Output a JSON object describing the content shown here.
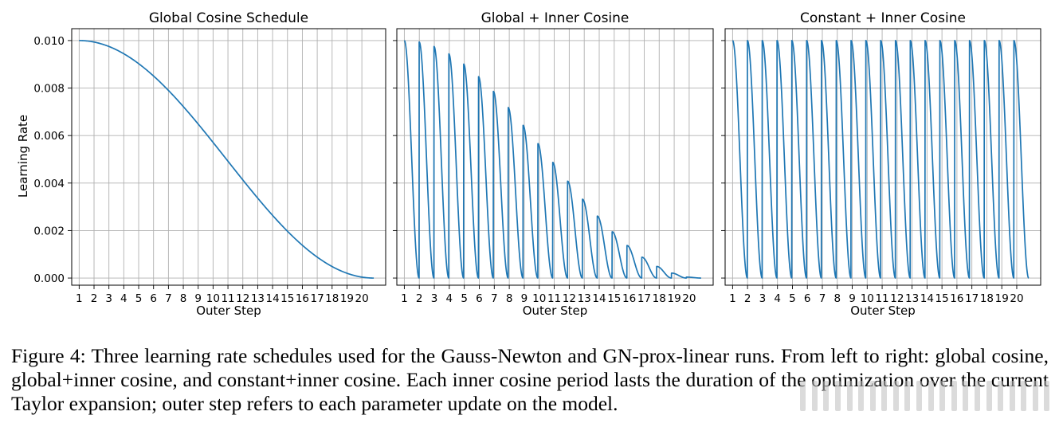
{
  "figure": {
    "ylabel": "Learning Rate",
    "ytick_labels": [
      "0.000",
      "0.002",
      "0.004",
      "0.006",
      "0.008",
      "0.010"
    ],
    "xtick_labels": [
      "1",
      "2",
      "3",
      "4",
      "5",
      "6",
      "7",
      "8",
      "9",
      "10",
      "11",
      "12",
      "13",
      "14",
      "15",
      "16",
      "17",
      "18",
      "19",
      "20"
    ]
  },
  "chart_data": [
    {
      "type": "line",
      "title": "Global Cosine Schedule",
      "xlabel": "Outer Step",
      "ylabel": "Learning Rate",
      "xlim": [
        0.5,
        21.6
      ],
      "ylim": [
        -0.0003,
        0.0105
      ],
      "grid": true,
      "color": "#1f77b4",
      "schedule": "global cosine",
      "lr_max": 0.01,
      "x_start": 1,
      "x_end": 20.8,
      "x": [
        1,
        2,
        3,
        4,
        5,
        6,
        7,
        8,
        9,
        10,
        11,
        12,
        13,
        14,
        15,
        16,
        17,
        18,
        19,
        20,
        20.8
      ],
      "y": [
        0.01,
        0.00994,
        0.00975,
        0.00944,
        0.00901,
        0.00848,
        0.00786,
        0.00718,
        0.00643,
        0.00566,
        0.00487,
        0.00408,
        0.00332,
        0.00261,
        0.00195,
        0.00137,
        0.00088,
        0.00049,
        0.00021,
        4e-05,
        0.0
      ]
    },
    {
      "type": "line",
      "title": "Global + Inner Cosine",
      "xlabel": "Outer Step",
      "ylabel": "",
      "xlim": [
        0.5,
        21.6
      ],
      "ylim": [
        -0.0003,
        0.0105
      ],
      "grid": true,
      "color": "#1f77b4",
      "schedule": "global cosine envelope x inner cosine per outer step",
      "lr_max": 0.01,
      "x_start": 1,
      "x_end": 20.8,
      "cycles": 20,
      "x": [
        1,
        2,
        3,
        4,
        5,
        6,
        7,
        8,
        9,
        10,
        11,
        12,
        13,
        14,
        15,
        16,
        17,
        18,
        19,
        20
      ],
      "peak_values": [
        0.01,
        0.00994,
        0.00975,
        0.00944,
        0.00901,
        0.00848,
        0.00786,
        0.00718,
        0.00643,
        0.00566,
        0.00487,
        0.00408,
        0.00332,
        0.00261,
        0.00195,
        0.00137,
        0.00088,
        0.00049,
        0.00021,
        4e-05
      ],
      "trough_value": 0.0
    },
    {
      "type": "line",
      "title": "Constant + Inner Cosine",
      "xlabel": "Outer Step",
      "ylabel": "",
      "xlim": [
        0.5,
        21.6
      ],
      "ylim": [
        -0.0003,
        0.0105
      ],
      "grid": true,
      "color": "#1f77b4",
      "schedule": "constant envelope x inner cosine per outer step",
      "lr_max": 0.01,
      "x_start": 1,
      "x_end": 20.8,
      "cycles": 20,
      "x": [
        1,
        2,
        3,
        4,
        5,
        6,
        7,
        8,
        9,
        10,
        11,
        12,
        13,
        14,
        15,
        16,
        17,
        18,
        19,
        20
      ],
      "peak_values": [
        0.01,
        0.01,
        0.01,
        0.01,
        0.01,
        0.01,
        0.01,
        0.01,
        0.01,
        0.01,
        0.01,
        0.01,
        0.01,
        0.01,
        0.01,
        0.01,
        0.01,
        0.01,
        0.01,
        0.01
      ],
      "trough_value": 0.0
    }
  ],
  "caption": {
    "text": "Figure 4: Three learning rate schedules used for the Gauss-Newton and GN-prox-linear runs. From left to right: global cosine, global+inner cosine, and constant+inner cosine. Each inner cosine period lasts the duration of the optimization over the current Taylor expansion; outer step refers to each parameter update on the model."
  }
}
